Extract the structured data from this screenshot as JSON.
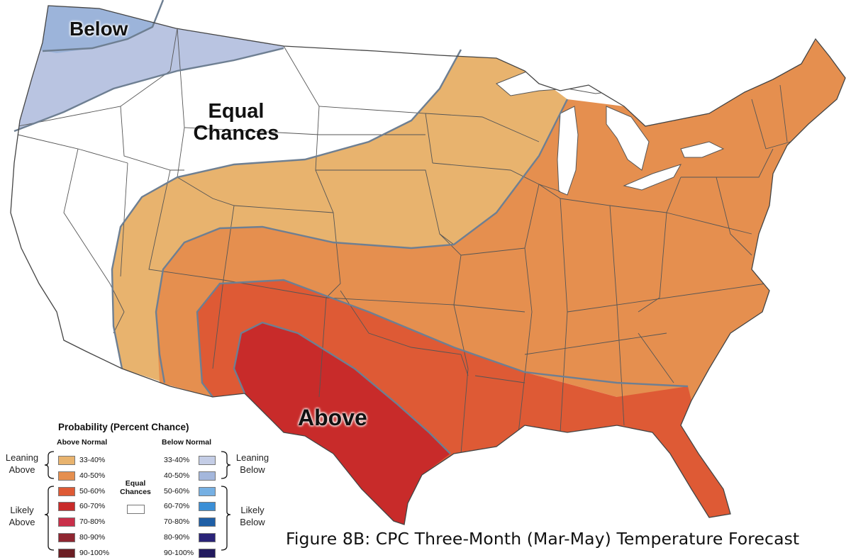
{
  "map": {
    "region_labels": {
      "below": "Below",
      "equal_line1": "Equal",
      "equal_line2": "Chances",
      "above": "Above"
    },
    "colors": {
      "equal_chances": "#ffffff",
      "leaning_below": "#b9c4e1",
      "below_40_50": "#9cb4da",
      "leaning_above": "#e8b36e",
      "above_40_50": "#e58f4f",
      "above_50_60": "#de5a35",
      "above_60_70": "#c82b2a",
      "boundary": "#6e7f92",
      "state_lines": "#555555"
    }
  },
  "legend": {
    "title": "Probability (Percent Chance)",
    "above_header": "Above Normal",
    "below_header": "Below Normal",
    "leaning_above": [
      "Leaning",
      "Above"
    ],
    "likely_above": [
      "Likely",
      "Above"
    ],
    "leaning_below": [
      "Leaning",
      "Below"
    ],
    "likely_below": [
      "Likely",
      "Below"
    ],
    "equal_chances": [
      "Equal",
      "Chances"
    ],
    "above_items": [
      {
        "label": "33-40%",
        "color": "#e8b36e"
      },
      {
        "label": "40-50%",
        "color": "#e58f4f"
      },
      {
        "label": "50-60%",
        "color": "#de5a35"
      },
      {
        "label": "60-70%",
        "color": "#c82b2a"
      },
      {
        "label": "70-80%",
        "color": "#c9304a"
      },
      {
        "label": "80-90%",
        "color": "#8f2631"
      },
      {
        "label": "90-100%",
        "color": "#6b1e24"
      }
    ],
    "below_items": [
      {
        "label": "33-40%",
        "color": "#c4cde6"
      },
      {
        "label": "40-50%",
        "color": "#a4b7dc"
      },
      {
        "label": "50-60%",
        "color": "#76b0e3"
      },
      {
        "label": "60-70%",
        "color": "#3b8fd6"
      },
      {
        "label": "70-80%",
        "color": "#1f5fa6"
      },
      {
        "label": "80-90%",
        "color": "#2a2378"
      },
      {
        "label": "90-100%",
        "color": "#221a5e"
      }
    ]
  },
  "caption": "Figure 8B: CPC Three-Month (Mar-May) Temperature Forecast"
}
